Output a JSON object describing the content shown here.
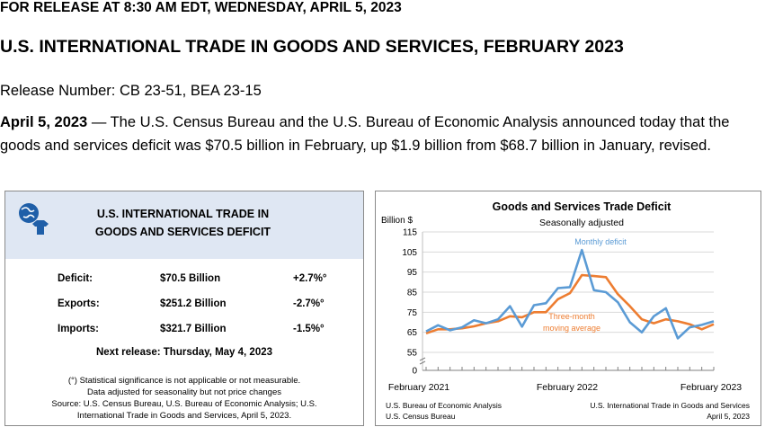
{
  "header": {
    "release_line": "FOR RELEASE AT 8:30 AM EDT, WEDNESDAY, APRIL 5, 2023",
    "title": "U.S. INTERNATIONAL TRADE IN GOODS AND SERVICES, FEBRUARY 2023",
    "release_number": "Release Number: CB 23-51, BEA 23-15"
  },
  "intro": {
    "date": "April 5, 2023",
    "text": " — The U.S. Census Bureau and the U.S. Bureau of Economic Analysis announced today that the goods and services deficit was $70.5 billion in February, up $1.9 billion from $68.7 billion in January, revised."
  },
  "summary_box": {
    "title_line1": "U.S. INTERNATIONAL TRADE IN",
    "title_line2": "GOODS AND SERVICES DEFICIT",
    "icon": "globe-icon",
    "header_bg": "#dfe7f3",
    "rows": [
      {
        "label": "Deficit:",
        "value": "$70.5 Billion",
        "change": "+2.7%°"
      },
      {
        "label": "Exports:",
        "value": "$251.2 Billion",
        "change": "-2.7%°"
      },
      {
        "label": "Imports:",
        "value": "$321.7 Billion",
        "change": "-1.5%°"
      }
    ],
    "next_release": "Next release: Thursday, May 4, 2023",
    "notes": [
      "(°) Statistical significance is not applicable or not measurable.",
      "Data adjusted for seasonality but not price changes",
      "Source: U.S. Census Bureau, U.S. Bureau of Economic Analysis; U.S.",
      "International Trade in Goods and Services, April 5, 2023."
    ]
  },
  "chart_data": {
    "type": "line",
    "title": "Goods and Services Trade Deficit",
    "subtitle": "Seasonally adjusted",
    "ylabel": "Billion $",
    "ylim": [
      0,
      115
    ],
    "yticks": [
      0,
      55,
      65,
      75,
      85,
      95,
      105,
      115
    ],
    "axis_break": true,
    "x_labels": [
      "February 2021",
      "February 2022",
      "February 2023"
    ],
    "x": [
      "2021-02",
      "2021-03",
      "2021-04",
      "2021-05",
      "2021-06",
      "2021-07",
      "2021-08",
      "2021-09",
      "2021-10",
      "2021-11",
      "2021-12",
      "2022-01",
      "2022-02",
      "2022-03",
      "2022-04",
      "2022-05",
      "2022-06",
      "2022-07",
      "2022-08",
      "2022-09",
      "2022-10",
      "2022-11",
      "2022-12",
      "2023-01",
      "2023-02"
    ],
    "series": [
      {
        "name": "Monthly deficit",
        "color": "#5b9bd5",
        "values": [
          65.5,
          68.5,
          66.0,
          67.5,
          71.0,
          69.5,
          71.5,
          78.0,
          67.8,
          78.5,
          79.5,
          87.0,
          87.5,
          106.0,
          86.0,
          85.0,
          80.0,
          70.0,
          65.0,
          73.0,
          77.0,
          62.0,
          67.5,
          68.7,
          70.5
        ]
      },
      {
        "name": "Three-month moving average",
        "color": "#ed7d31",
        "values": [
          64.5,
          66.5,
          66.5,
          67.0,
          68.0,
          69.5,
          70.5,
          73.0,
          72.5,
          75.0,
          75.0,
          81.5,
          84.5,
          93.5,
          93.0,
          92.5,
          84.0,
          78.0,
          71.5,
          69.5,
          71.5,
          70.5,
          69.0,
          66.5,
          69.0
        ]
      }
    ],
    "legend_labels": {
      "monthly": "Monthly deficit",
      "avg_line1": "Three-month",
      "avg_line2": "moving average"
    },
    "sources_left": [
      "U.S. Bureau of Economic Analysis",
      "U.S. Census Bureau"
    ],
    "sources_right": [
      "U.S. International Trade in Goods and Services",
      "April 5, 2023"
    ]
  }
}
